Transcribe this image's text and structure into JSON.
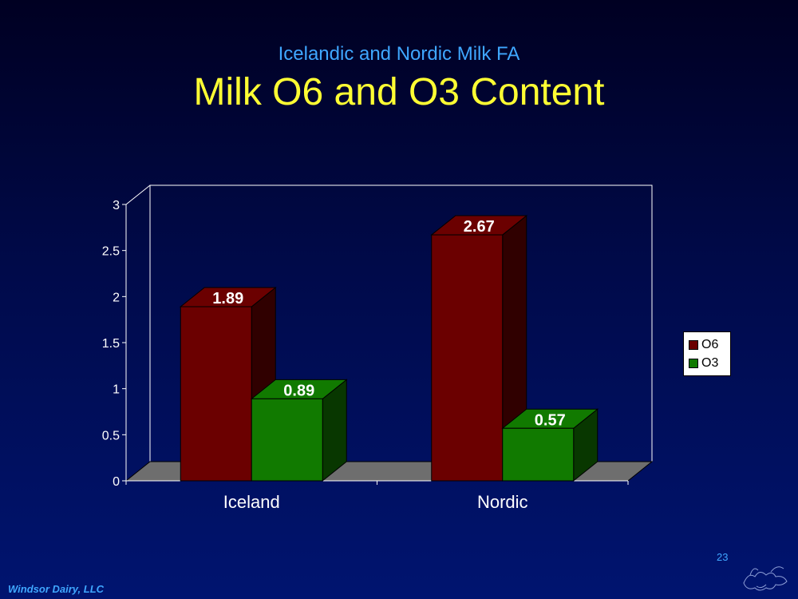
{
  "slide": {
    "subtitle": "Icelandic and Nordic Milk FA",
    "title": "Milk O6 and O3 Content",
    "footer": "Windsor Dairy, LLC",
    "page_number": "23",
    "logo_icon": "cow-sketch-icon"
  },
  "colors": {
    "O6": "#6b0000",
    "O3": "#117a00",
    "floor": "#6e6e6e"
  },
  "chart_data": {
    "type": "bar",
    "categories": [
      "Iceland",
      "Nordic"
    ],
    "series": [
      {
        "name": "O6",
        "values": [
          1.89,
          2.67
        ]
      },
      {
        "name": "O3",
        "values": [
          0.89,
          0.57
        ]
      }
    ],
    "data_labels": [
      [
        "1.89",
        "2.67"
      ],
      [
        "0.89",
        "0.57"
      ]
    ],
    "ylim": [
      0,
      3
    ],
    "yticks": [
      "0",
      "0.5",
      "1",
      "1.5",
      "2",
      "2.5",
      "3"
    ],
    "legend": "right",
    "grid": false,
    "three_d": true
  }
}
